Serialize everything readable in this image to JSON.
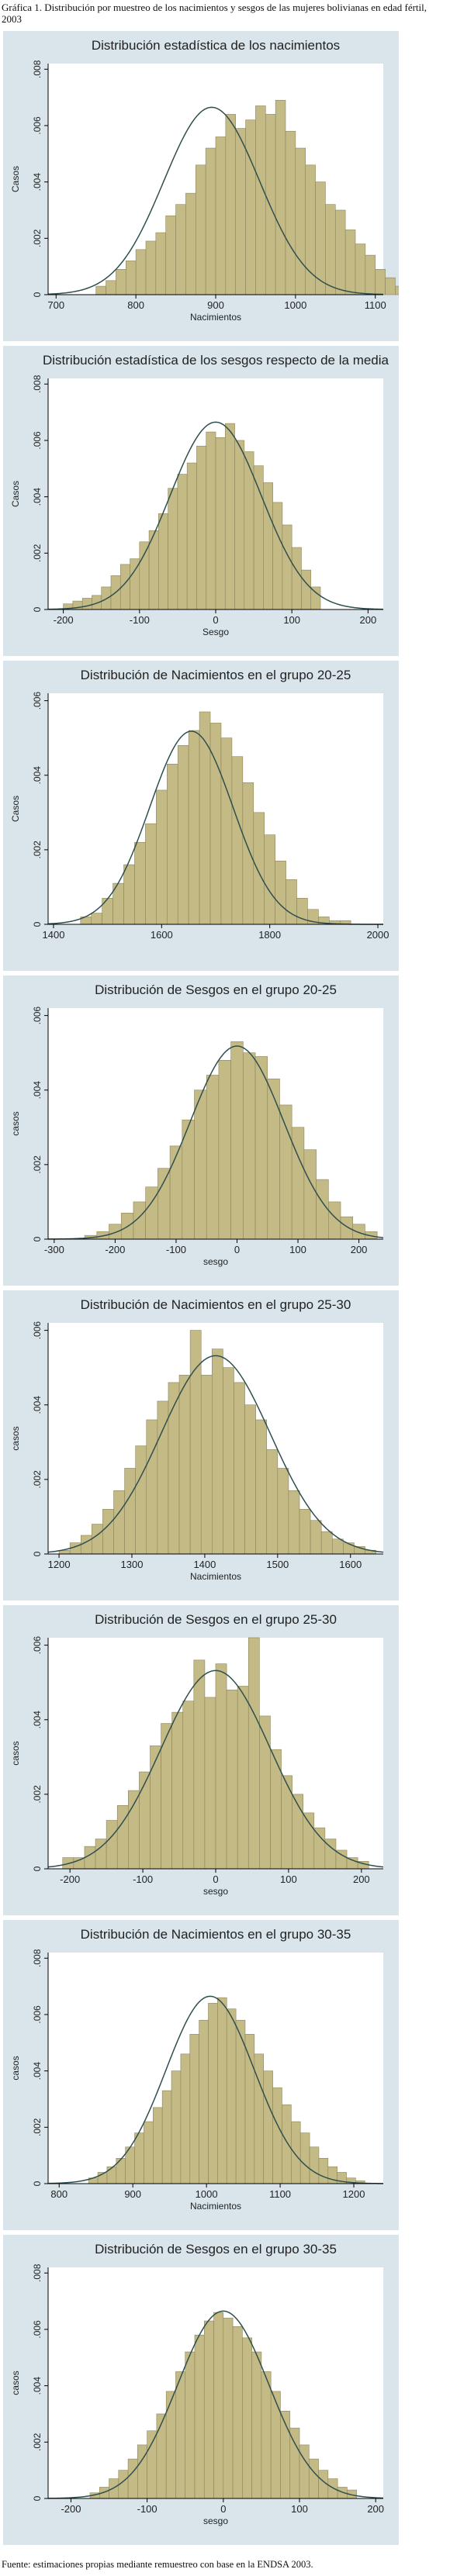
{
  "caption": "Gráfica 1. Distribución por muestreo de los nacimientos y sesgos de las mujeres bolivianas en edad fértil, 2003",
  "footer": "Fuente: estimaciones propias mediante remuestreo con base en la ENDSA 2003.",
  "colors": {
    "panel_bg": "#d9e5ea",
    "plot_bg": "#ffffff",
    "bar_fill": "#c4ba86",
    "bar_stroke": "#8c8558",
    "curve": "#2f4f4f",
    "text": "#222222"
  },
  "chart_data": [
    {
      "type": "bar",
      "title": "Distribución estadística de los nacimientos",
      "xlabel": "Nacimientos",
      "ylabel": "Casos",
      "xlim": [
        690,
        1110
      ],
      "ylim": [
        0,
        0.0082
      ],
      "xticks": [
        700,
        800,
        900,
        1000,
        1100
      ],
      "yticks": [
        0,
        0.002,
        0.004,
        0.006,
        0.008
      ],
      "ytick_labels": [
        "0",
        ".002",
        ".004",
        ".006",
        ".008"
      ],
      "bin_start": 750,
      "bin_width": 12.5,
      "values": [
        0.0003,
        0.0005,
        0.0009,
        0.0012,
        0.0016,
        0.0019,
        0.0022,
        0.0028,
        0.0032,
        0.0036,
        0.0046,
        0.0052,
        0.0056,
        0.0064,
        0.0059,
        0.0062,
        0.0067,
        0.0064,
        0.0069,
        0.0058,
        0.0052,
        0.0046,
        0.004,
        0.0032,
        0.003,
        0.0023,
        0.0018,
        0.0014,
        0.0009,
        0.0006,
        0.0003,
        0.0002
      ],
      "normal": {
        "mean": 895,
        "sd": 60
      }
    },
    {
      "type": "bar",
      "title": "Distribución estadística de los sesgos respecto de la media",
      "xlabel": "Sesgo",
      "ylabel": "Casos",
      "xlim": [
        -220,
        220
      ],
      "ylim": [
        0,
        0.0082
      ],
      "xticks": [
        -200,
        -100,
        0,
        100,
        200
      ],
      "yticks": [
        0,
        0.002,
        0.004,
        0.006,
        0.008
      ],
      "ytick_labels": [
        "0",
        ".002",
        ".004",
        ".006",
        ".008"
      ],
      "bin_start": -200,
      "bin_width": 12.5,
      "values": [
        0.0002,
        0.0003,
        0.0004,
        0.0005,
        0.0008,
        0.0012,
        0.0016,
        0.0018,
        0.0024,
        0.0028,
        0.0034,
        0.0043,
        0.0048,
        0.0052,
        0.0058,
        0.0063,
        0.0061,
        0.0066,
        0.006,
        0.0056,
        0.0051,
        0.0045,
        0.0038,
        0.003,
        0.0022,
        0.0014,
        0.0008
      ],
      "normal": {
        "mean": 0,
        "sd": 60
      }
    },
    {
      "type": "bar",
      "title": "Distribución de Nacimientos en el grupo 20-25",
      "xlabel": "",
      "ylabel": "Casos",
      "xlim": [
        1390,
        2010
      ],
      "ylim": [
        0,
        0.0062
      ],
      "xticks": [
        1400,
        1600,
        1800,
        2000
      ],
      "yticks": [
        0,
        0.002,
        0.004,
        0.006
      ],
      "ytick_labels": [
        "0",
        ".002",
        ".004",
        ".006"
      ],
      "bin_start": 1450,
      "bin_width": 20,
      "values": [
        0.0002,
        0.0003,
        0.0007,
        0.0011,
        0.0016,
        0.0022,
        0.0027,
        0.0036,
        0.0043,
        0.0048,
        0.0052,
        0.0057,
        0.0054,
        0.005,
        0.0045,
        0.0038,
        0.003,
        0.0024,
        0.0017,
        0.0012,
        0.0007,
        0.0004,
        0.0002,
        0.0001,
        0.0001
      ],
      "normal": {
        "mean": 1655,
        "sd": 77
      }
    },
    {
      "type": "bar",
      "title": "Distribución de Sesgos en el grupo 20-25",
      "xlabel": "sesgo",
      "ylabel": "casos",
      "xlim": [
        -310,
        240
      ],
      "ylim": [
        0,
        0.0062
      ],
      "xticks": [
        -300,
        -200,
        -100,
        0,
        100,
        200
      ],
      "yticks": [
        0,
        0.002,
        0.004,
        0.006
      ],
      "ytick_labels": [
        "0",
        ".002",
        ".004",
        ".006"
      ],
      "bin_start": -250,
      "bin_width": 20,
      "values": [
        0.0001,
        0.0002,
        0.0004,
        0.0007,
        0.001,
        0.0014,
        0.0019,
        0.0025,
        0.0032,
        0.004,
        0.0044,
        0.0048,
        0.0053,
        0.005,
        0.0049,
        0.0043,
        0.0036,
        0.003,
        0.0024,
        0.0016,
        0.001,
        0.0006,
        0.0004,
        0.0002
      ],
      "normal": {
        "mean": 0,
        "sd": 77
      }
    },
    {
      "type": "bar",
      "title": "Distribución de Nacimientos en el grupo 25-30",
      "xlabel": "Nacimientos",
      "ylabel": "casos",
      "xlim": [
        1185,
        1645
      ],
      "ylim": [
        0,
        0.0062
      ],
      "xticks": [
        1200,
        1300,
        1400,
        1500,
        1600
      ],
      "yticks": [
        0,
        0.002,
        0.004,
        0.006
      ],
      "ytick_labels": [
        "0",
        ".002",
        ".004",
        ".006"
      ],
      "bin_start": 1200,
      "bin_width": 15,
      "values": [
        0.0001,
        0.0003,
        0.0005,
        0.0008,
        0.0012,
        0.0017,
        0.0023,
        0.0029,
        0.0036,
        0.0041,
        0.0046,
        0.0048,
        0.006,
        0.0048,
        0.0055,
        0.005,
        0.0046,
        0.004,
        0.0036,
        0.0028,
        0.0023,
        0.0017,
        0.0012,
        0.0009,
        0.0006,
        0.0004,
        0.0003,
        0.0002,
        0.0001
      ],
      "normal": {
        "mean": 1415,
        "sd": 75
      }
    },
    {
      "type": "bar",
      "title": "Distribución de Sesgos en el grupo 25-30",
      "xlabel": "sesgo",
      "ylabel": "casos",
      "xlim": [
        -230,
        230
      ],
      "ylim": [
        0,
        0.0062
      ],
      "xticks": [
        -200,
        -100,
        0,
        100,
        200
      ],
      "yticks": [
        0,
        0.002,
        0.004,
        0.006
      ],
      "ytick_labels": [
        "0",
        ".002",
        ".004",
        ".006"
      ],
      "bin_start": -210,
      "bin_width": 15,
      "values": [
        0.0003,
        0.0003,
        0.0006,
        0.0008,
        0.0013,
        0.0017,
        0.0021,
        0.0026,
        0.0033,
        0.0039,
        0.0042,
        0.0045,
        0.0056,
        0.0046,
        0.0055,
        0.0048,
        0.0049,
        0.0062,
        0.0041,
        0.0032,
        0.0025,
        0.002,
        0.0015,
        0.0011,
        0.0008,
        0.0005,
        0.0003,
        0.0002
      ],
      "normal": {
        "mean": 0,
        "sd": 75
      }
    },
    {
      "type": "bar",
      "title": "Distribución de Nacimientos en el grupo 30-35",
      "xlabel": "Nacimientos",
      "ylabel": "casos",
      "xlim": [
        785,
        1240
      ],
      "ylim": [
        0,
        0.0082
      ],
      "xticks": [
        800,
        900,
        1000,
        1100,
        1200
      ],
      "yticks": [
        0,
        0.002,
        0.004,
        0.006,
        0.008
      ],
      "ytick_labels": [
        "0",
        ".002",
        ".004",
        ".006",
        ".008"
      ],
      "bin_start": 840,
      "bin_width": 12.5,
      "values": [
        0.0002,
        0.0004,
        0.0006,
        0.0009,
        0.0013,
        0.0018,
        0.0022,
        0.0027,
        0.0033,
        0.004,
        0.0046,
        0.0053,
        0.0058,
        0.0064,
        0.0066,
        0.0062,
        0.0058,
        0.0053,
        0.0046,
        0.004,
        0.0034,
        0.0028,
        0.0022,
        0.0018,
        0.0013,
        0.0009,
        0.0006,
        0.0004,
        0.0002,
        0.0001
      ],
      "normal": {
        "mean": 1005,
        "sd": 60
      }
    },
    {
      "type": "bar",
      "title": "Distribución de Sesgos en el grupo 30-35",
      "xlabel": "sesgo",
      "ylabel": "casos",
      "xlim": [
        -230,
        210
      ],
      "ylim": [
        0,
        0.0082
      ],
      "xticks": [
        -200,
        -100,
        0,
        100,
        200
      ],
      "yticks": [
        0,
        0.002,
        0.004,
        0.006,
        0.008
      ],
      "ytick_labels": [
        "0",
        ".002",
        ".004",
        ".006",
        ".008"
      ],
      "bin_start": -175,
      "bin_width": 12.5,
      "values": [
        0.0002,
        0.0004,
        0.0007,
        0.001,
        0.0014,
        0.0019,
        0.0024,
        0.003,
        0.0038,
        0.0045,
        0.0052,
        0.0058,
        0.0063,
        0.0066,
        0.0064,
        0.0061,
        0.0057,
        0.0052,
        0.0045,
        0.0038,
        0.0031,
        0.0025,
        0.0019,
        0.0014,
        0.001,
        0.0007,
        0.0004,
        0.0003
      ],
      "normal": {
        "mean": 0,
        "sd": 60
      }
    }
  ]
}
